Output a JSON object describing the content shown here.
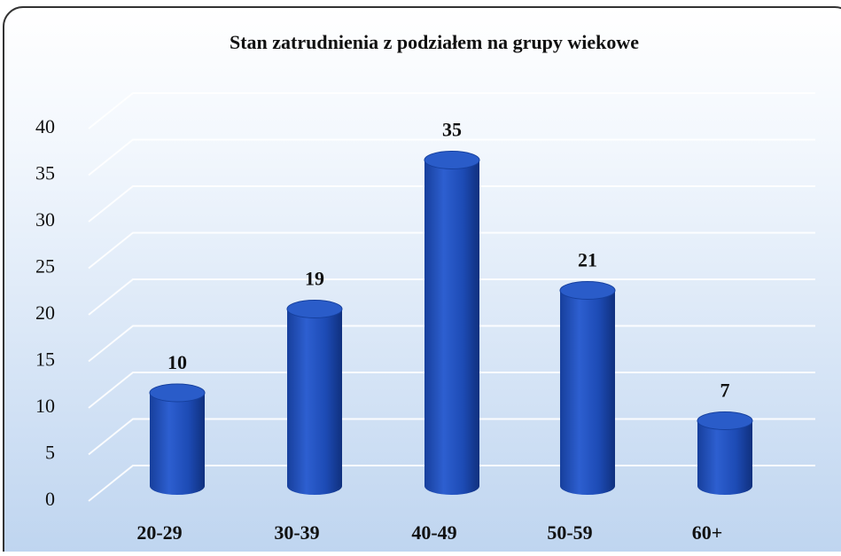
{
  "chart_data": {
    "type": "bar",
    "title": "Stan zatrudnienia z podziałem na grupy wiekowe",
    "categories": [
      "20-29",
      "30-39",
      "40-49",
      "50-59",
      "60+"
    ],
    "values": [
      10,
      19,
      35,
      21,
      7
    ],
    "color": "#1f4fb8",
    "ylim": [
      0,
      40
    ],
    "yticks": [
      0,
      5,
      10,
      15,
      20,
      25,
      30,
      35,
      40
    ],
    "grid": true
  }
}
